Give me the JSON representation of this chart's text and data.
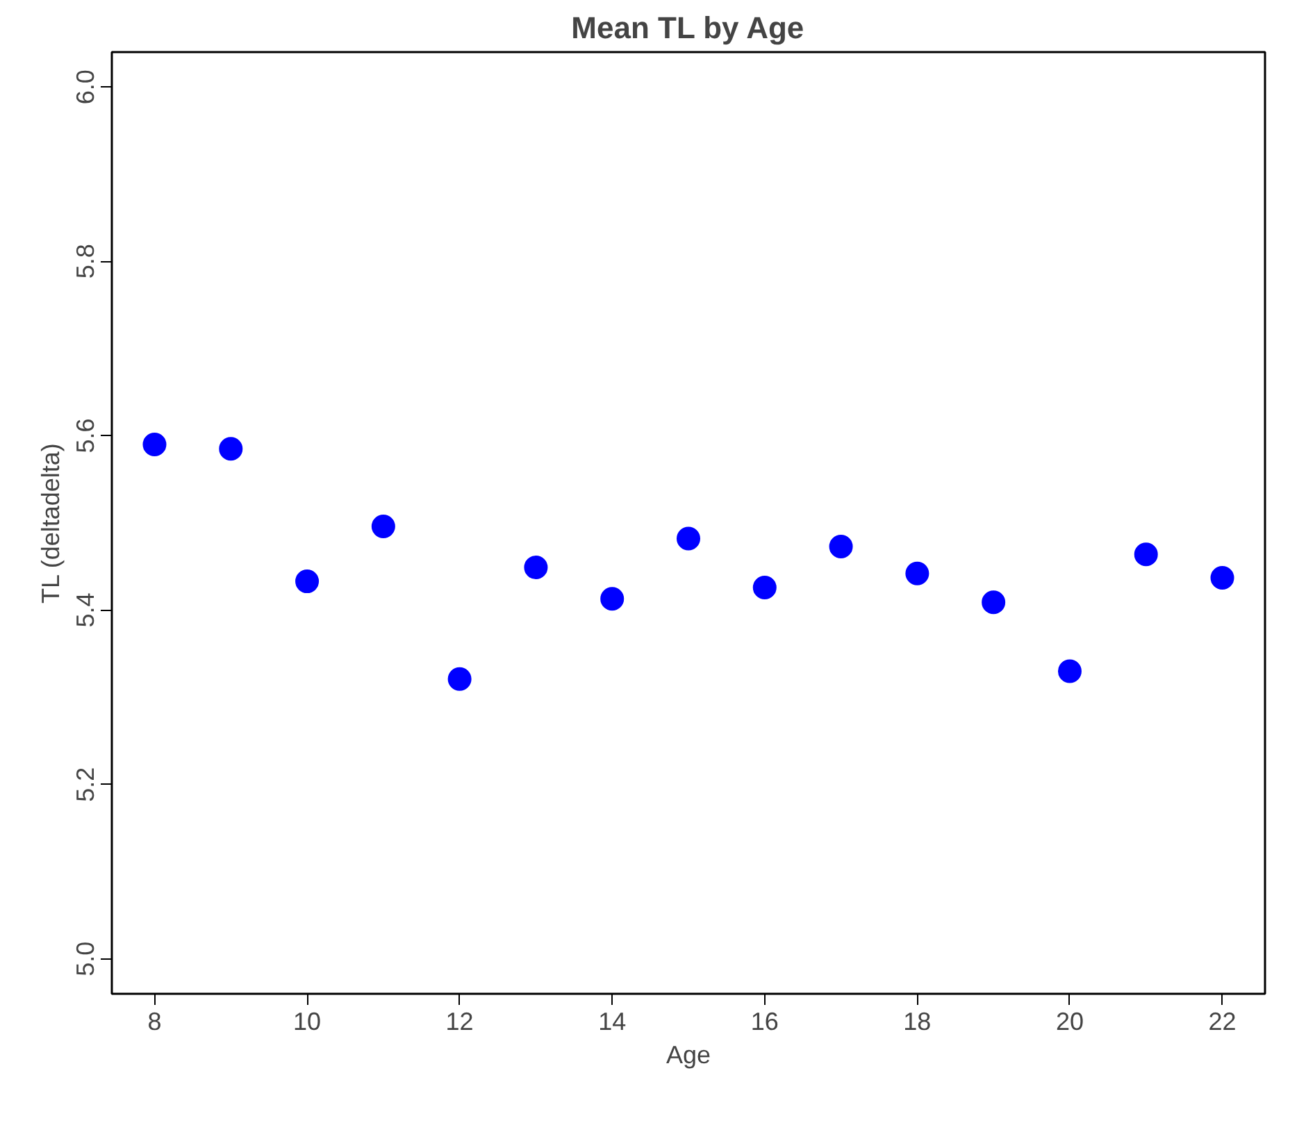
{
  "chart_data": {
    "type": "scatter",
    "title": "Mean TL by Age",
    "xlabel": "Age",
    "ylabel": "TL (deltadelta)",
    "x": [
      8,
      9,
      10,
      11,
      12,
      13,
      14,
      15,
      16,
      17,
      18,
      19,
      20,
      21,
      22
    ],
    "series": [
      {
        "color": "#0000ff",
        "values": [
          5.59,
          5.585,
          5.433,
          5.496,
          5.321,
          5.449,
          5.413,
          5.482,
          5.426,
          5.473,
          5.442,
          5.409,
          5.33,
          5.464,
          5.437
        ]
      }
    ],
    "xlim": [
      7.44,
      22.56
    ],
    "ylim": [
      4.96,
      6.04
    ],
    "xticks": [
      8,
      10,
      12,
      14,
      16,
      18,
      20,
      22
    ],
    "yticks": [
      {
        "value": 5,
        "label": "5.0"
      },
      5.2,
      5.4,
      5.6,
      5.8,
      {
        "value": 6,
        "label": "6.0"
      }
    ],
    "grid": false,
    "marker": "circle"
  }
}
